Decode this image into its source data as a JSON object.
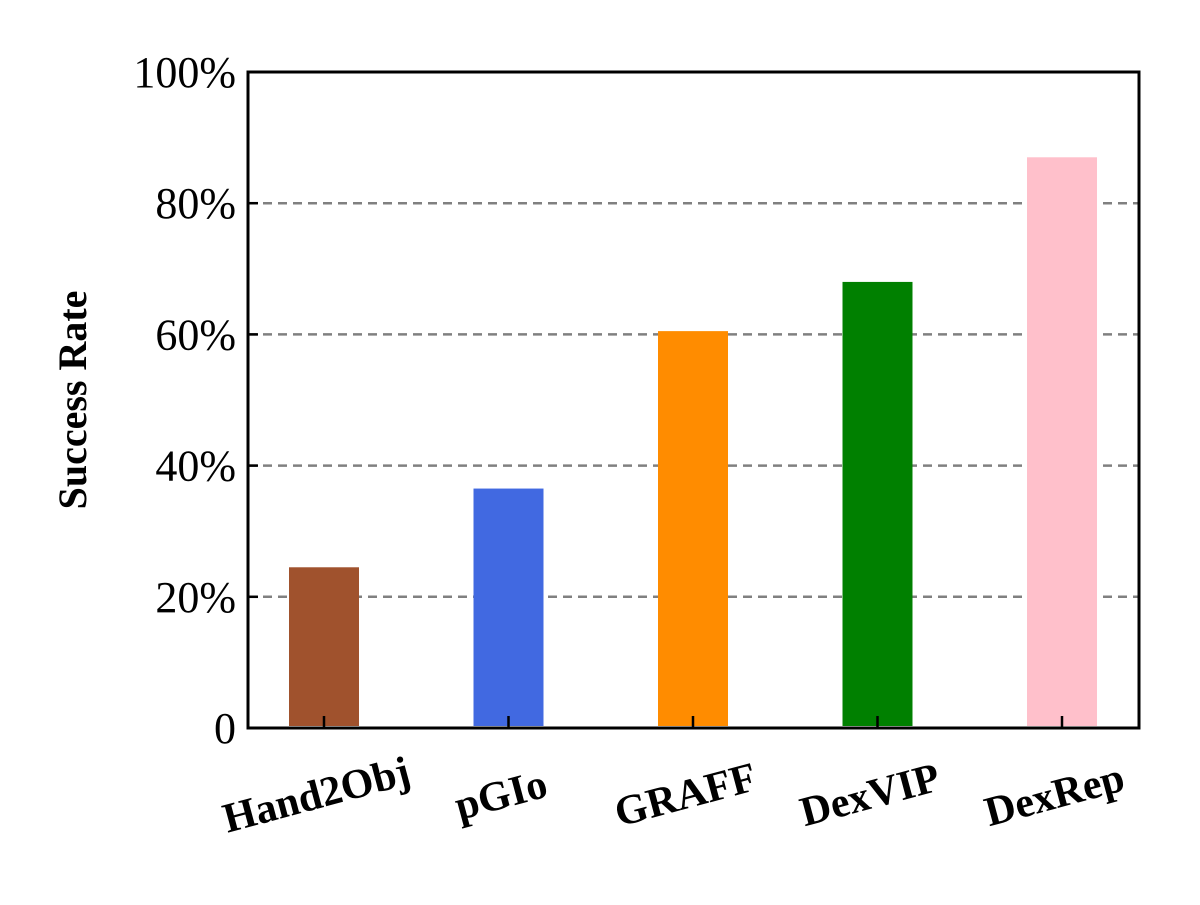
{
  "chart_data": {
    "type": "bar",
    "title": "",
    "xlabel": "",
    "ylabel": "Success Rate",
    "categories": [
      "Hand2Obj",
      "pGIo",
      "GRAFF",
      "DexVIP",
      "DexRep"
    ],
    "values": [
      24.5,
      36.5,
      60.5,
      68,
      87
    ],
    "colors": [
      "#a0522d",
      "#4169e1",
      "#ff8c00",
      "#008000",
      "#ffc0cb"
    ],
    "ylim": [
      0,
      100
    ],
    "yticks": [
      0,
      20,
      40,
      60,
      80,
      100
    ],
    "ytick_labels": [
      "0",
      "20%",
      "40%",
      "60%",
      "80%",
      "100%"
    ],
    "grid": "horizontal dashed",
    "grid_color": "#808080",
    "legend": "none"
  }
}
